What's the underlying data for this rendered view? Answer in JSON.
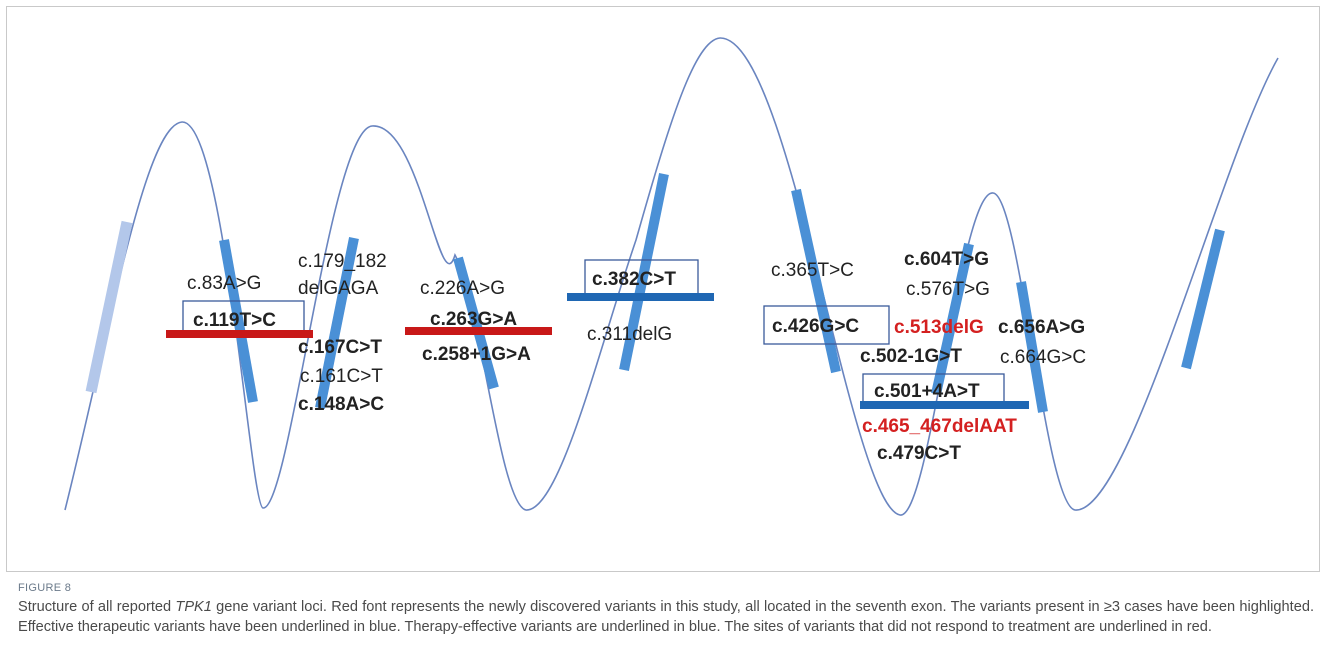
{
  "figure_label": "FIGURE 8",
  "caption": {
    "before_gene": "Structure of all reported ",
    "gene": "TPK1",
    "after_gene": " gene variant loci. Red font represents the newly discovered variants in this study, all located in the seventh exon. The variants present in ≥3 cases have been highlighted. Effective therapeutic variants have been underlined in blue. Therapy-effective variants are underlined in blue. The sites of variants that did not respond to treatment are underlined in red."
  },
  "colors": {
    "curve": "#6a85c0",
    "exon": "#4a90d6",
    "exon_faded": "#b3c7ea",
    "new_variant": "#d42020",
    "effective_underline": "#1f67b3",
    "nonresponse_underline": "#c81818",
    "box": "#3a5a9a",
    "text": "#222222"
  },
  "variants": {
    "v83": "c.83A>G",
    "v119": "c.119T>C",
    "v179a": "c.179_182",
    "v179b": "delGAGA",
    "v167": "c.167C>T",
    "v161": "c.161C>T",
    "v148": "c.148A>C",
    "v226": "c.226A>G",
    "v263": "c.263G>A",
    "v258": "c.258+1G>A",
    "v382": "c.382C>T",
    "v311": "c.311delG",
    "v365": "c.365T>C",
    "v426": "c.426G>C",
    "v604": "c.604T>G",
    "v576": "c.576T>G",
    "v513": "c.513delG",
    "v656": "c.656A>G",
    "v502": "c.502-1G>T",
    "v664": "c.664G>C",
    "v501": "c.501+4A>T",
    "v465": "c.465_467delAAT",
    "v479": "c.479C>T"
  }
}
